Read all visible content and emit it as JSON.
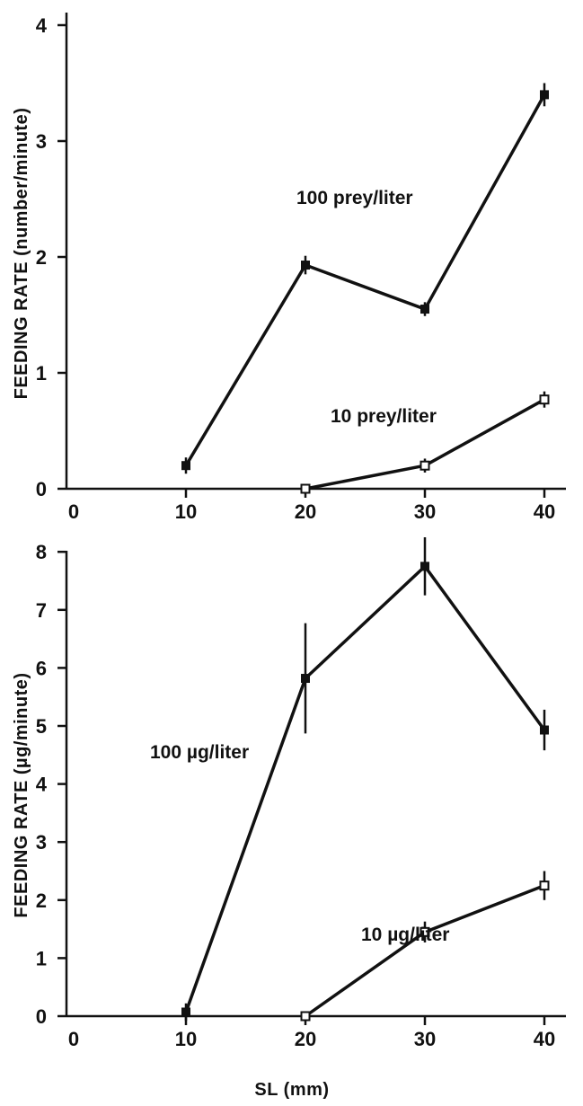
{
  "chart_data": [
    {
      "type": "line",
      "xlabel": "",
      "ylabel": "FEEDING RATE (number/minute)",
      "xlim": [
        0,
        45
      ],
      "ylim": [
        0,
        4
      ],
      "xticks": [
        "0",
        "10",
        "20",
        "30",
        "40"
      ],
      "yticks": [
        "0",
        "1",
        "2",
        "3",
        "4"
      ],
      "series": [
        {
          "name": "100 prey/liter",
          "marker": "filled-square",
          "x": [
            10,
            20,
            30,
            40
          ],
          "y": [
            0.2,
            1.93,
            1.55,
            3.4
          ],
          "err": [
            0.07,
            0.08,
            0.06,
            0.1
          ]
        },
        {
          "name": "10 prey/liter",
          "marker": "open-square",
          "x": [
            20,
            30,
            40
          ],
          "y": [
            0.0,
            0.2,
            0.77
          ],
          "err": [
            0.0,
            0.06,
            0.07
          ]
        }
      ]
    },
    {
      "type": "line",
      "xlabel": "SL (mm)",
      "ylabel": "FEEDING RATE (µg/minute)",
      "xlim": [
        0,
        45
      ],
      "ylim": [
        0,
        8
      ],
      "xticks": [
        "0",
        "10",
        "20",
        "30",
        "40"
      ],
      "yticks": [
        "0",
        "1",
        "2",
        "3",
        "4",
        "5",
        "6",
        "7",
        "8"
      ],
      "series": [
        {
          "name": "100 µg/liter",
          "marker": "filled-square",
          "x": [
            10,
            20,
            30,
            40
          ],
          "y": [
            0.07,
            5.82,
            7.75,
            4.93
          ],
          "err": [
            0.15,
            0.95,
            0.5,
            0.35
          ]
        },
        {
          "name": "10 µg/liter",
          "marker": "open-square",
          "x": [
            20,
            30,
            40
          ],
          "y": [
            0.0,
            1.45,
            2.25
          ],
          "err": [
            0.0,
            0.18,
            0.25
          ]
        }
      ]
    }
  ]
}
